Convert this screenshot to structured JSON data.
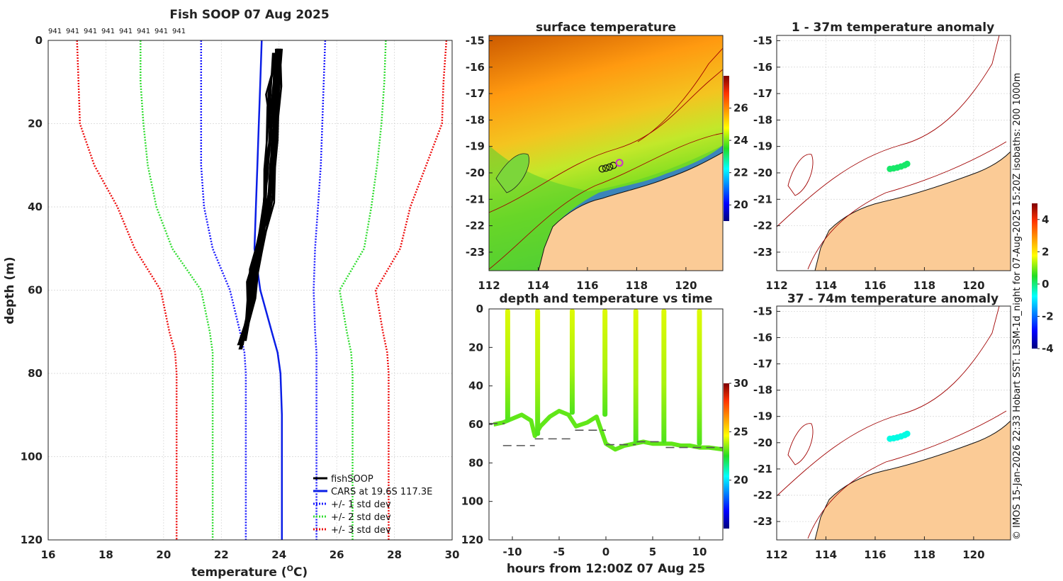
{
  "colors": {
    "fishsoop": "#000000",
    "cars": "#0a1ee6",
    "std1": "#1a1aff",
    "std2": "#33dd33",
    "std3": "#ee1111",
    "land": "#fbcb96",
    "isobath": "#a00000",
    "bathy_dash": "#555555"
  },
  "chart_data": [
    {
      "id": "profile",
      "type": "line",
      "title": "Fish SOOP 07 Aug 2025",
      "xlabel": "temperature (",
      "xlabel_unit": "O",
      "xlabel_end": "C)",
      "ylabel": "depth (m)",
      "xlim": [
        16,
        30
      ],
      "ylim": [
        0,
        120
      ],
      "y_inverted": true,
      "xticks": [
        "16",
        "18",
        "20",
        "22",
        "24",
        "26",
        "28",
        "30"
      ],
      "yticks": [
        "0",
        "20",
        "40",
        "60",
        "80",
        "100",
        "120"
      ],
      "top_labels": [
        "941",
        "941",
        "941",
        "941",
        "941",
        "941",
        "941",
        "941"
      ],
      "legend": [
        "fishSOOP",
        "CARS at 19.6S 117.3E",
        "+/- 1 std dev",
        "+/- 2 std dev",
        "+/- 3 std dev"
      ],
      "cars": {
        "depth": [
          0,
          10,
          20,
          30,
          40,
          50,
          60,
          70,
          75,
          80,
          90,
          100,
          110,
          120
        ],
        "temp": [
          23.4,
          23.35,
          23.3,
          23.25,
          23.2,
          23.15,
          23.35,
          23.75,
          23.95,
          24.05,
          24.1,
          24.1,
          24.1,
          24.1
        ]
      },
      "std1": {
        "depth": [
          0,
          10,
          20,
          30,
          40,
          50,
          60,
          70,
          75,
          80,
          90,
          100,
          110,
          120
        ],
        "minus": [
          21.3,
          21.3,
          21.3,
          21.3,
          21.4,
          21.7,
          22.3,
          22.65,
          22.8,
          22.85,
          22.85,
          22.85,
          22.85,
          22.85
        ],
        "plus": [
          25.6,
          25.55,
          25.5,
          25.45,
          25.35,
          25.25,
          25.2,
          25.25,
          25.3,
          25.3,
          25.3,
          25.3,
          25.3,
          25.3
        ]
      },
      "std2": {
        "depth": [
          0,
          10,
          20,
          30,
          40,
          50,
          60,
          70,
          75,
          80,
          90,
          100,
          110,
          120
        ],
        "minus": [
          19.2,
          19.2,
          19.3,
          19.45,
          19.75,
          20.3,
          21.3,
          21.6,
          21.7,
          21.7,
          21.7,
          21.7,
          21.7,
          21.7
        ],
        "plus": [
          27.7,
          27.65,
          27.55,
          27.4,
          27.2,
          26.95,
          26.1,
          26.35,
          26.5,
          26.55,
          26.55,
          26.55,
          26.55,
          26.55
        ]
      },
      "std3": {
        "depth": [
          0,
          10,
          20,
          30,
          40,
          50,
          60,
          70,
          75,
          80,
          90,
          100,
          110,
          120
        ],
        "minus": [
          17.0,
          17.05,
          17.1,
          17.6,
          18.4,
          19.0,
          19.9,
          20.2,
          20.4,
          20.45,
          20.45,
          20.45,
          20.45,
          20.45
        ],
        "plus": [
          29.8,
          29.7,
          29.65,
          29.1,
          28.55,
          28.2,
          27.35,
          27.6,
          27.75,
          27.8,
          27.8,
          27.8,
          27.8,
          27.8
        ]
      },
      "fishsoop_casts": [
        {
          "depth": [
            2,
            15,
            30,
            45,
            55,
            65,
            74
          ],
          "temp": [
            24.0,
            23.9,
            23.75,
            23.5,
            23.1,
            22.95,
            22.7
          ]
        },
        {
          "depth": [
            2,
            12,
            25,
            40,
            52,
            62,
            72
          ],
          "temp": [
            23.95,
            23.85,
            23.8,
            23.6,
            23.3,
            23.0,
            22.75
          ]
        },
        {
          "depth": [
            3,
            14,
            28,
            42,
            55,
            66,
            73
          ],
          "temp": [
            23.9,
            23.8,
            23.65,
            23.45,
            23.05,
            22.9,
            22.65
          ]
        },
        {
          "depth": [
            2,
            10,
            22,
            38,
            50,
            63,
            71
          ],
          "temp": [
            24.05,
            23.95,
            23.9,
            23.7,
            23.35,
            23.05,
            22.8
          ]
        },
        {
          "depth": [
            3,
            16,
            31,
            46,
            57,
            67,
            74
          ],
          "temp": [
            23.85,
            23.6,
            23.55,
            23.4,
            23.0,
            22.9,
            22.7
          ]
        },
        {
          "depth": [
            2,
            13,
            27,
            41,
            53,
            64,
            72
          ],
          "temp": [
            24.0,
            23.55,
            23.85,
            23.55,
            23.2,
            22.95,
            22.7
          ]
        },
        {
          "depth": [
            4,
            18,
            33,
            47,
            58,
            68,
            73
          ],
          "temp": [
            23.9,
            23.7,
            23.6,
            23.3,
            22.95,
            22.85,
            22.75
          ]
        },
        {
          "depth": [
            2,
            11,
            24,
            39,
            51,
            62,
            72
          ],
          "temp": [
            24.1,
            24.0,
            23.95,
            23.75,
            23.4,
            23.1,
            22.85
          ]
        }
      ]
    },
    {
      "id": "sst_map",
      "type": "heatmap",
      "title": "surface temperature",
      "xlim": [
        112,
        121.5
      ],
      "ylim": [
        -23.7,
        -14.8
      ],
      "xticks": [
        "112",
        "114",
        "116",
        "118",
        "120"
      ],
      "yticks": [
        "-15",
        "-16",
        "-17",
        "-18",
        "-19",
        "-20",
        "-21",
        "-22",
        "-23"
      ],
      "colorbar": {
        "min": 19,
        "max": 28,
        "ticks": [
          "20",
          "22",
          "24",
          "26"
        ]
      },
      "track_points": {
        "lon": [
          116.6,
          116.75,
          116.9,
          117.05,
          117.3
        ],
        "lat": [
          -19.85,
          -19.82,
          -19.78,
          -19.72,
          -19.62
        ]
      }
    },
    {
      "id": "depth_time",
      "type": "scatter",
      "title": "depth and temperature vs time",
      "xlabel": "hours from 12:00Z 07 Aug 25",
      "xlim": [
        -12.5,
        12.5
      ],
      "ylim": [
        0,
        120
      ],
      "y_inverted": true,
      "xticks": [
        "-10",
        "-5",
        "0",
        "5",
        "10"
      ],
      "yticks": [
        "0",
        "20",
        "40",
        "60",
        "80",
        "100",
        "120"
      ],
      "colorbar": {
        "min": 15,
        "max": 30,
        "ticks": [
          "20",
          "25",
          "30"
        ]
      },
      "casts_hours": [
        -10.5,
        -7.3,
        -3.6,
        -0.1,
        3.2,
        6.2,
        10.0
      ],
      "bottom": {
        "hours": [
          -12,
          -11,
          -10,
          -9,
          -8,
          -7.6,
          -7,
          -6,
          -5,
          -4,
          -3.2,
          -2,
          -1,
          0,
          1,
          2,
          3,
          4,
          5,
          6,
          7,
          8,
          9,
          10,
          11,
          12.5
        ],
        "depth": [
          60,
          59,
          57,
          55,
          58,
          66,
          61,
          56,
          53,
          55,
          61,
          59,
          56,
          70,
          73,
          71,
          70,
          69,
          70,
          70,
          70,
          71,
          71,
          72,
          72,
          73
        ]
      },
      "bathy_segments": [
        {
          "h0": -12.5,
          "h1": -10.8,
          "depth": 59.5
        },
        {
          "h0": -11.0,
          "h1": -7.6,
          "depth": 71.0
        },
        {
          "h0": -7.6,
          "h1": -3.5,
          "depth": 67.5
        },
        {
          "h0": -3.3,
          "h1": 0.0,
          "depth": 63.0
        },
        {
          "h0": 0.0,
          "h1": 3.2,
          "depth": 70.5
        },
        {
          "h0": 3.3,
          "h1": 6.2,
          "depth": 69.0
        },
        {
          "h0": 6.4,
          "h1": 12.5,
          "depth": 72.0
        }
      ]
    },
    {
      "id": "anomaly_1_37",
      "type": "scatter",
      "title": "1 - 37m temperature anomaly",
      "xlim": [
        112,
        121.5
      ],
      "ylim": [
        -23.7,
        -14.8
      ],
      "xticks": [
        "112",
        "114",
        "116",
        "118",
        "120"
      ],
      "yticks": [
        "-15",
        "-16",
        "-17",
        "-18",
        "-19",
        "-20",
        "-21",
        "-22",
        "-23"
      ],
      "points": {
        "lon": [
          116.6,
          116.75,
          116.9,
          117.05,
          117.2,
          117.3
        ],
        "lat": [
          -19.85,
          -19.83,
          -19.8,
          -19.76,
          -19.71,
          -19.66
        ],
        "anomaly": [
          0.1,
          0.1,
          0.1,
          0.1,
          0.1,
          0.1
        ]
      }
    },
    {
      "id": "anomaly_37_74",
      "type": "scatter",
      "title": "37 - 74m temperature anomaly",
      "xlim": [
        112,
        121.5
      ],
      "ylim": [
        -23.7,
        -14.8
      ],
      "xticks": [
        "112",
        "114",
        "116",
        "118",
        "120"
      ],
      "yticks": [
        "-15",
        "-16",
        "-17",
        "-18",
        "-19",
        "-20",
        "-21",
        "-22",
        "-23"
      ],
      "points": {
        "lon": [
          116.6,
          116.75,
          116.9,
          117.05,
          117.2,
          117.3
        ],
        "lat": [
          -19.85,
          -19.83,
          -19.8,
          -19.76,
          -19.71,
          -19.66
        ],
        "anomaly": [
          -0.6,
          -0.6,
          -0.6,
          -0.6,
          -0.6,
          -0.6
        ]
      },
      "colorbar": {
        "min": -4,
        "max": 5,
        "ticks": [
          "4",
          "2",
          "0",
          "-2",
          "-4"
        ]
      }
    }
  ],
  "credit": "© IMOS 15-Jan-2026 22:33 Hobart SST: L3SM-1d_night for 07-Aug-2025 15:20Z isobaths: 200  1000m"
}
